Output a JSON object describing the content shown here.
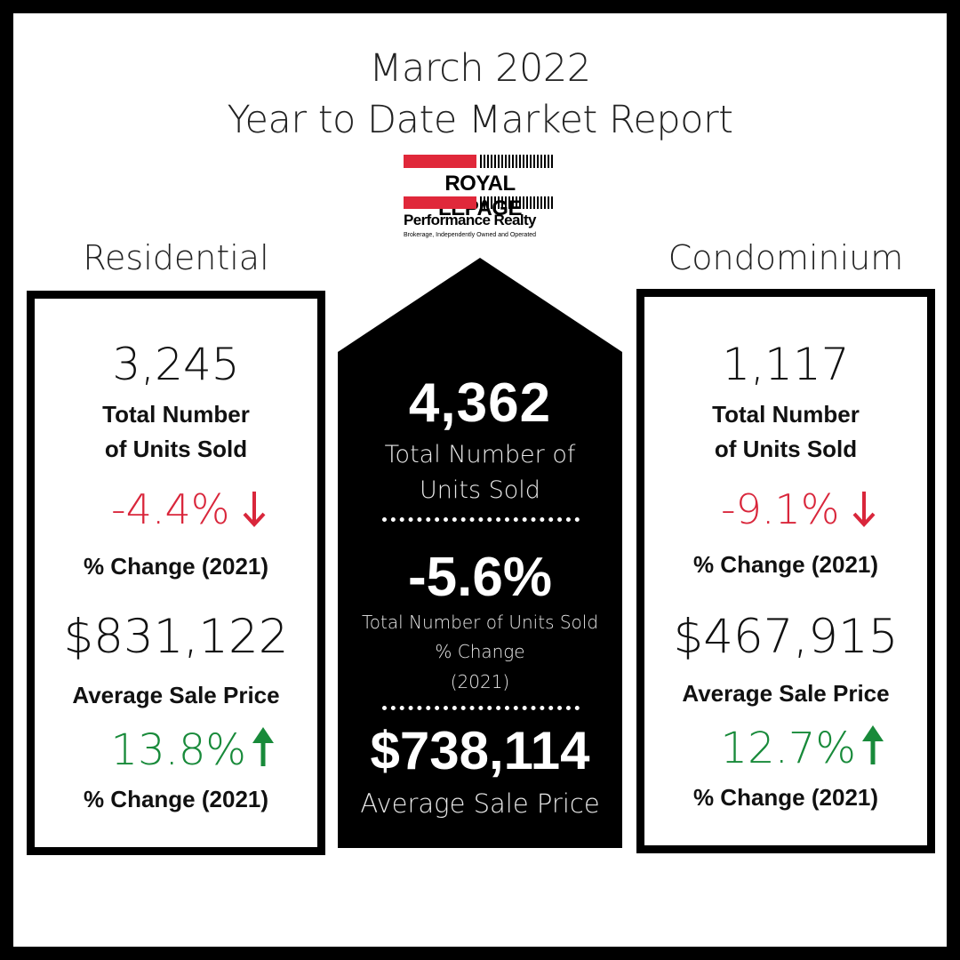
{
  "header": {
    "line1": "March 2022",
    "line2": "Year to Date Market Report"
  },
  "logo": {
    "brand": "ROYAL LEPAGE",
    "name": "Performance Realty",
    "tagline": "Brokerage, Independently Owned and Operated",
    "brand_color": "#e0283a"
  },
  "residential": {
    "heading": "Residential",
    "units": "3,245",
    "units_label_1": "Total Number",
    "units_label_2": "of Units Sold",
    "units_change": "-4.4%",
    "units_change_label": "% Change (2021)",
    "avg_price": "$831,122",
    "avg_price_label": "Average Sale Price",
    "price_change": "13.8%",
    "price_change_label": "% Change (2021)"
  },
  "total": {
    "units": "4,362",
    "units_label_1": "Total Number of",
    "units_label_2": "Units Sold",
    "change": "-5.6%",
    "change_label_1": "Total Number of Units Sold",
    "change_label_2": "% Change",
    "change_label_3": "(2021)",
    "avg_price": "$738,114",
    "avg_price_label": "Average Sale Price"
  },
  "condominium": {
    "heading": "Condominium",
    "units": "1,117",
    "units_label_1": "Total Number",
    "units_label_2": "of Units Sold",
    "units_change": "-9.1%",
    "units_change_label": "% Change (2021)",
    "avg_price": "$467,915",
    "avg_price_label": "Average Sale Price",
    "price_change": "12.7%",
    "price_change_label": "% Change (2021)"
  },
  "colors": {
    "negative": "#d9263b",
    "positive": "#188a3a"
  },
  "icons": {
    "down": "arrow-down-icon",
    "up": "arrow-up-icon"
  }
}
